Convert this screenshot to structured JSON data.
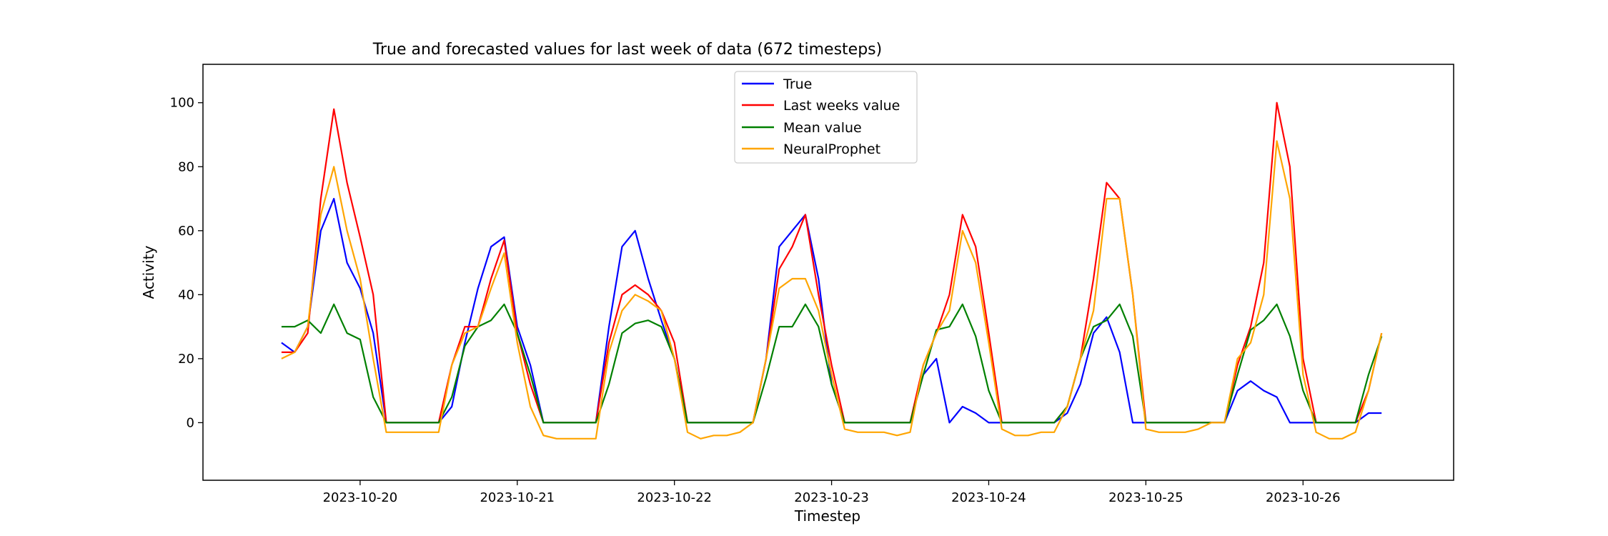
{
  "chart_data": {
    "type": "line",
    "title": "True and forecasted values for last week of data (672 timesteps)",
    "xlabel": "Timestep",
    "ylabel": "Activity",
    "xlim": [
      "2023-10-19 00:00",
      "2023-10-26 23:00"
    ],
    "ylim": [
      -18,
      112
    ],
    "xticks": [
      "2023-10-20",
      "2023-10-21",
      "2023-10-22",
      "2023-10-23",
      "2023-10-24",
      "2023-10-25",
      "2023-10-26"
    ],
    "yticks": [
      0,
      20,
      40,
      60,
      80,
      100
    ],
    "legend": "top-center",
    "grid": false,
    "x": [
      "2023-10-19 12:00",
      "2023-10-19 14:00",
      "2023-10-19 16:00",
      "2023-10-19 18:00",
      "2023-10-19 20:00",
      "2023-10-19 22:00",
      "2023-10-20 00:00",
      "2023-10-20 02:00",
      "2023-10-20 04:00",
      "2023-10-20 06:00",
      "2023-10-20 08:00",
      "2023-10-20 10:00",
      "2023-10-20 12:00",
      "2023-10-20 14:00",
      "2023-10-20 16:00",
      "2023-10-20 18:00",
      "2023-10-20 20:00",
      "2023-10-20 22:00",
      "2023-10-21 00:00",
      "2023-10-21 02:00",
      "2023-10-21 04:00",
      "2023-10-21 06:00",
      "2023-10-21 08:00",
      "2023-10-21 10:00",
      "2023-10-21 12:00",
      "2023-10-21 14:00",
      "2023-10-21 16:00",
      "2023-10-21 18:00",
      "2023-10-21 20:00",
      "2023-10-21 22:00",
      "2023-10-22 00:00",
      "2023-10-22 02:00",
      "2023-10-22 04:00",
      "2023-10-22 06:00",
      "2023-10-22 08:00",
      "2023-10-22 10:00",
      "2023-10-22 12:00",
      "2023-10-22 14:00",
      "2023-10-22 16:00",
      "2023-10-22 18:00",
      "2023-10-22 20:00",
      "2023-10-22 22:00",
      "2023-10-23 00:00",
      "2023-10-23 02:00",
      "2023-10-23 04:00",
      "2023-10-23 06:00",
      "2023-10-23 08:00",
      "2023-10-23 10:00",
      "2023-10-23 12:00",
      "2023-10-23 14:00",
      "2023-10-23 16:00",
      "2023-10-23 18:00",
      "2023-10-23 20:00",
      "2023-10-23 22:00",
      "2023-10-24 00:00",
      "2023-10-24 02:00",
      "2023-10-24 04:00",
      "2023-10-24 06:00",
      "2023-10-24 08:00",
      "2023-10-24 10:00",
      "2023-10-24 12:00",
      "2023-10-24 14:00",
      "2023-10-24 16:00",
      "2023-10-24 18:00",
      "2023-10-24 20:00",
      "2023-10-24 22:00",
      "2023-10-25 00:00",
      "2023-10-25 02:00",
      "2023-10-25 04:00",
      "2023-10-25 06:00",
      "2023-10-25 08:00",
      "2023-10-25 10:00",
      "2023-10-25 12:00",
      "2023-10-25 14:00",
      "2023-10-25 16:00",
      "2023-10-25 18:00",
      "2023-10-25 20:00",
      "2023-10-25 22:00",
      "2023-10-26 00:00",
      "2023-10-26 02:00",
      "2023-10-26 04:00",
      "2023-10-26 06:00",
      "2023-10-26 08:00",
      "2023-10-26 10:00",
      "2023-10-26 12:00"
    ],
    "series": [
      {
        "name": "True",
        "color": "#0000ff",
        "values": [
          25,
          22,
          30,
          60,
          70,
          50,
          42,
          28,
          0,
          0,
          0,
          0,
          0,
          5,
          25,
          42,
          55,
          58,
          30,
          18,
          0,
          0,
          0,
          0,
          0,
          30,
          55,
          60,
          45,
          32,
          20,
          0,
          0,
          0,
          0,
          0,
          0,
          20,
          55,
          60,
          65,
          45,
          12,
          0,
          0,
          0,
          0,
          0,
          0,
          15,
          20,
          0,
          5,
          3,
          0,
          0,
          0,
          0,
          0,
          0,
          3,
          12,
          28,
          33,
          22,
          0,
          0,
          0,
          0,
          0,
          0,
          0,
          0,
          10,
          13,
          10,
          8,
          0,
          0,
          0,
          0,
          0,
          0,
          3,
          3
        ]
      },
      {
        "name": "Last weeks value",
        "color": "#ff0000",
        "values": [
          22,
          22,
          28,
          70,
          98,
          75,
          58,
          40,
          0,
          0,
          0,
          0,
          0,
          18,
          30,
          30,
          45,
          57,
          28,
          12,
          0,
          0,
          0,
          0,
          0,
          25,
          40,
          43,
          40,
          35,
          25,
          0,
          0,
          0,
          0,
          0,
          0,
          20,
          48,
          55,
          65,
          40,
          18,
          0,
          0,
          0,
          0,
          0,
          0,
          18,
          28,
          40,
          65,
          55,
          28,
          0,
          0,
          0,
          0,
          0,
          5,
          20,
          45,
          75,
          70,
          40,
          0,
          0,
          0,
          0,
          0,
          0,
          0,
          18,
          30,
          50,
          100,
          80,
          20,
          0,
          0,
          0,
          0,
          10,
          28
        ]
      },
      {
        "name": "Mean value",
        "color": "#008000",
        "values": [
          30,
          30,
          32,
          28,
          37,
          28,
          26,
          8,
          0,
          0,
          0,
          0,
          0,
          8,
          24,
          30,
          32,
          37,
          28,
          15,
          0,
          0,
          0,
          0,
          0,
          12,
          28,
          31,
          32,
          30,
          20,
          0,
          0,
          0,
          0,
          0,
          0,
          14,
          30,
          30,
          37,
          30,
          12,
          0,
          0,
          0,
          0,
          0,
          0,
          15,
          29,
          30,
          37,
          27,
          10,
          0,
          0,
          0,
          0,
          0,
          5,
          20,
          30,
          32,
          37,
          27,
          0,
          0,
          0,
          0,
          0,
          0,
          0,
          15,
          29,
          32,
          37,
          27,
          10,
          0,
          0,
          0,
          0,
          15,
          27
        ]
      },
      {
        "name": "NeuralProphet",
        "color": "#ffa500",
        "values": [
          20,
          22,
          30,
          65,
          80,
          60,
          45,
          20,
          -3,
          -3,
          -3,
          -3,
          -3,
          18,
          28,
          30,
          42,
          53,
          25,
          5,
          -4,
          -5,
          -5,
          -5,
          -5,
          22,
          35,
          40,
          38,
          35,
          20,
          -3,
          -5,
          -4,
          -4,
          -3,
          0,
          20,
          42,
          45,
          45,
          35,
          15,
          -2,
          -3,
          -3,
          -3,
          -4,
          -3,
          18,
          28,
          35,
          60,
          50,
          25,
          -2,
          -4,
          -4,
          -3,
          -3,
          5,
          20,
          35,
          70,
          70,
          40,
          -2,
          -3,
          -3,
          -3,
          -2,
          0,
          0,
          20,
          25,
          40,
          88,
          70,
          15,
          -3,
          -5,
          -5,
          -3,
          10,
          28
        ]
      }
    ]
  }
}
